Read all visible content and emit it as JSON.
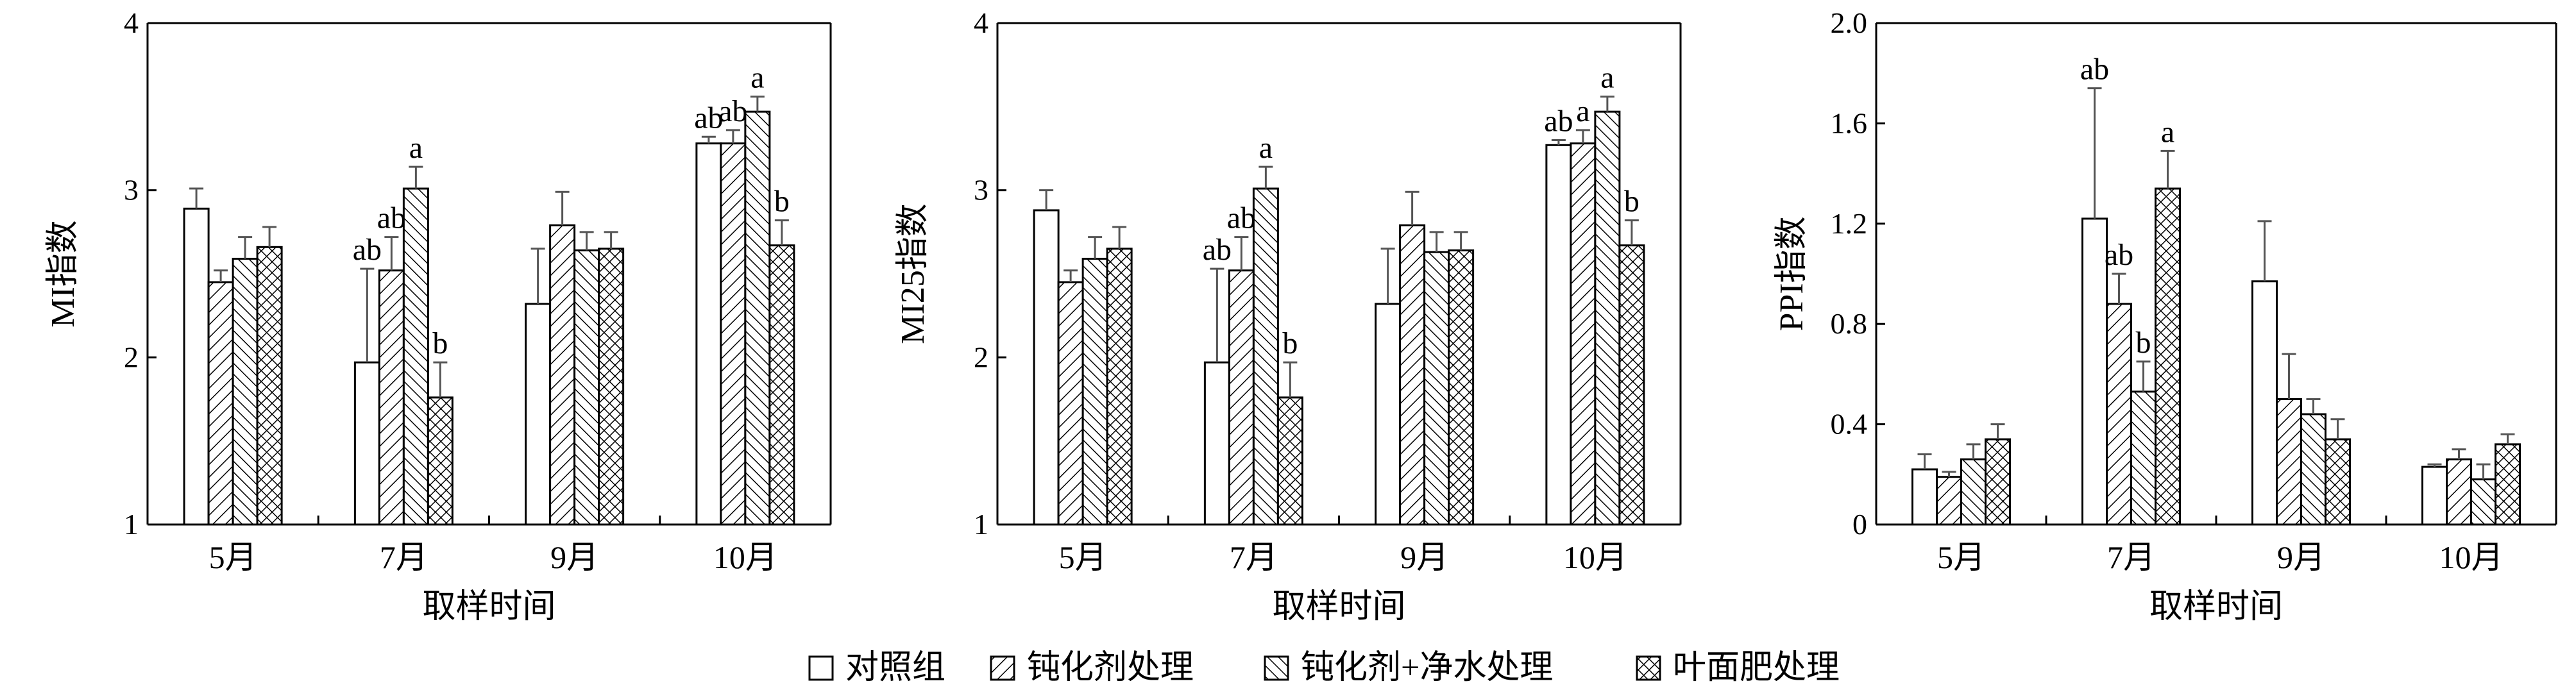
{
  "legend": [
    {
      "name": "对照组",
      "pattern": "none"
    },
    {
      "name": "钝化剂处理",
      "pattern": "diag-right"
    },
    {
      "name": "钝化剂+净水处理",
      "pattern": "diag-left"
    },
    {
      "name": "叶面肥处理",
      "pattern": "crosshatch"
    }
  ],
  "chart_data": [
    {
      "type": "bar",
      "ylabel": "MI指数",
      "xlabel": "取样时间",
      "ylim": [
        1,
        4
      ],
      "yticks": [
        "1",
        "2",
        "3",
        "4"
      ],
      "categories": [
        "5月",
        "7月",
        "9月",
        "10月"
      ],
      "series": [
        {
          "name": "对照组",
          "values": [
            2.89,
            1.97,
            2.32,
            3.28
          ],
          "errors": [
            0.12,
            0.56,
            0.33,
            0.04
          ]
        },
        {
          "name": "钝化剂处理",
          "values": [
            2.45,
            2.52,
            2.79,
            3.28
          ],
          "errors": [
            0.07,
            0.2,
            0.2,
            0.08
          ]
        },
        {
          "name": "钝化剂+净水处理",
          "values": [
            2.59,
            3.01,
            2.64,
            3.47
          ],
          "errors": [
            0.13,
            0.13,
            0.11,
            0.09
          ]
        },
        {
          "name": "叶面肥处理",
          "values": [
            2.66,
            1.76,
            2.65,
            2.67
          ],
          "errors": [
            0.12,
            0.21,
            0.1,
            0.15
          ]
        }
      ],
      "significance": [
        [
          "",
          "",
          "",
          ""
        ],
        [
          "ab",
          "ab",
          "a",
          "b"
        ],
        [
          "",
          "",
          "",
          ""
        ],
        [
          "ab",
          "ab",
          "a",
          "b"
        ]
      ]
    },
    {
      "type": "bar",
      "ylabel": "MI25指数",
      "xlabel": "取样时间",
      "ylim": [
        1,
        4
      ],
      "yticks": [
        "1",
        "2",
        "3",
        "4"
      ],
      "categories": [
        "5月",
        "7月",
        "9月",
        "10月"
      ],
      "series": [
        {
          "name": "对照组",
          "values": [
            2.88,
            1.97,
            2.32,
            3.27
          ],
          "errors": [
            0.12,
            0.56,
            0.33,
            0.03
          ]
        },
        {
          "name": "钝化剂处理",
          "values": [
            2.45,
            2.52,
            2.79,
            3.28
          ],
          "errors": [
            0.07,
            0.2,
            0.2,
            0.08
          ]
        },
        {
          "name": "钝化剂+净水处理",
          "values": [
            2.59,
            3.01,
            2.63,
            3.47
          ],
          "errors": [
            0.13,
            0.13,
            0.12,
            0.09
          ]
        },
        {
          "name": "叶面肥处理",
          "values": [
            2.65,
            1.76,
            2.64,
            2.67
          ],
          "errors": [
            0.13,
            0.21,
            0.11,
            0.15
          ]
        }
      ],
      "significance": [
        [
          "",
          "",
          "",
          ""
        ],
        [
          "ab",
          "ab",
          "a",
          "b"
        ],
        [
          "",
          "",
          "",
          ""
        ],
        [
          "ab",
          "a",
          "a",
          "b"
        ]
      ]
    },
    {
      "type": "bar",
      "ylabel": "PPI指数",
      "xlabel": "取样时间",
      "ylim": [
        0,
        2.0
      ],
      "yticks": [
        "0",
        "0.4",
        "0.8",
        "1.2",
        "1.6",
        "2.0"
      ],
      "categories": [
        "5月",
        "7月",
        "9月",
        "10月"
      ],
      "series": [
        {
          "name": "对照组",
          "values": [
            0.22,
            1.22,
            0.97,
            0.23
          ],
          "errors": [
            0.06,
            0.52,
            0.24,
            0.01
          ]
        },
        {
          "name": "钝化剂处理",
          "values": [
            0.19,
            0.88,
            0.5,
            0.26
          ],
          "errors": [
            0.02,
            0.12,
            0.18,
            0.04
          ]
        },
        {
          "name": "钝化剂+净水处理",
          "values": [
            0.26,
            0.53,
            0.44,
            0.18
          ],
          "errors": [
            0.06,
            0.12,
            0.06,
            0.06
          ]
        },
        {
          "name": "叶面肥处理",
          "values": [
            0.34,
            1.34,
            0.34,
            0.32
          ],
          "errors": [
            0.06,
            0.15,
            0.08,
            0.04
          ]
        }
      ],
      "significance": [
        [
          "",
          "",
          "",
          ""
        ],
        [
          "ab",
          "ab",
          "b",
          "a"
        ],
        [
          "",
          "",
          "",
          ""
        ],
        [
          "",
          "",
          "",
          ""
        ]
      ]
    }
  ]
}
